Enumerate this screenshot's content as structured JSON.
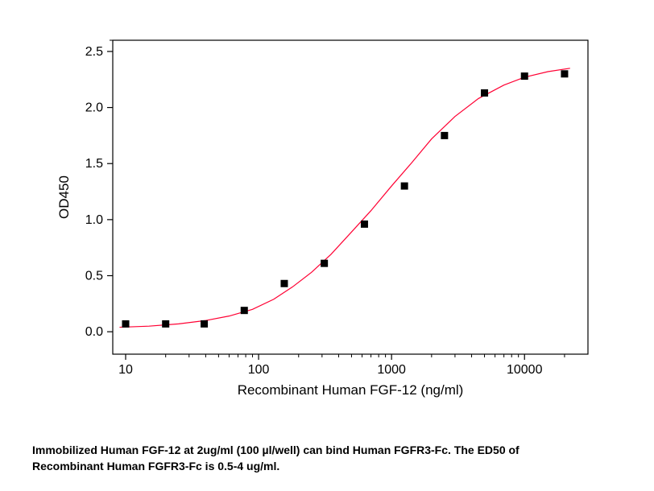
{
  "chart": {
    "type": "scatter+line",
    "xlabel": "Recombinant Human FGF-12 (ng/ml)",
    "ylabel": "OD450",
    "xlabel_fontsize": 17,
    "ylabel_fontsize": 17,
    "tick_fontsize": 16,
    "xscale": "log",
    "yscale": "linear",
    "xlim": [
      8,
      30000
    ],
    "ylim": [
      -0.2,
      2.6
    ],
    "ytick_step": 0.5,
    "xtick_values": [
      10,
      100,
      1000,
      10000
    ],
    "xtick_labels": [
      "10",
      "100",
      "1000",
      "10000"
    ],
    "ytick_values": [
      0.0,
      0.5,
      1.0,
      1.5,
      2.0,
      2.5
    ],
    "ytick_labels": [
      "0.0",
      "0.5",
      "1.0",
      "1.5",
      "2.0",
      "2.5"
    ],
    "x_minor_ticks": [
      20,
      30,
      40,
      50,
      60,
      70,
      80,
      90,
      200,
      300,
      400,
      500,
      600,
      700,
      800,
      900,
      2000,
      3000,
      4000,
      5000,
      6000,
      7000,
      8000,
      9000,
      20000
    ],
    "background_color": "#ffffff",
    "axis_color": "#000000",
    "marker_color": "#000000",
    "marker_size": 9,
    "marker_style": "square",
    "line_color": "#ff0033",
    "line_width": 1.2,
    "font_family": "Arial",
    "data_points": [
      {
        "x": 10,
        "y": 0.07
      },
      {
        "x": 20,
        "y": 0.07
      },
      {
        "x": 39,
        "y": 0.07
      },
      {
        "x": 78,
        "y": 0.19
      },
      {
        "x": 156,
        "y": 0.43
      },
      {
        "x": 312,
        "y": 0.61
      },
      {
        "x": 625,
        "y": 0.96
      },
      {
        "x": 1250,
        "y": 1.3
      },
      {
        "x": 2500,
        "y": 1.75
      },
      {
        "x": 5000,
        "y": 2.13
      },
      {
        "x": 10000,
        "y": 2.28
      },
      {
        "x": 20000,
        "y": 2.3
      }
    ],
    "fit_points": [
      {
        "x": 9,
        "y": 0.04
      },
      {
        "x": 15,
        "y": 0.05
      },
      {
        "x": 25,
        "y": 0.07
      },
      {
        "x": 40,
        "y": 0.1
      },
      {
        "x": 60,
        "y": 0.14
      },
      {
        "x": 90,
        "y": 0.2
      },
      {
        "x": 130,
        "y": 0.29
      },
      {
        "x": 180,
        "y": 0.4
      },
      {
        "x": 250,
        "y": 0.53
      },
      {
        "x": 350,
        "y": 0.69
      },
      {
        "x": 500,
        "y": 0.89
      },
      {
        "x": 700,
        "y": 1.08
      },
      {
        "x": 1000,
        "y": 1.3
      },
      {
        "x": 1400,
        "y": 1.5
      },
      {
        "x": 2000,
        "y": 1.72
      },
      {
        "x": 3000,
        "y": 1.92
      },
      {
        "x": 4500,
        "y": 2.08
      },
      {
        "x": 7000,
        "y": 2.2
      },
      {
        "x": 10000,
        "y": 2.27
      },
      {
        "x": 15000,
        "y": 2.32
      },
      {
        "x": 22000,
        "y": 2.35
      }
    ]
  },
  "caption": {
    "line1": "Immobilized Human FGF-12 at 2ug/ml (100 µl/well) can bind Human FGFR3-Fc. The ED50 of",
    "line2": "Recombinant Human FGFR3-Fc is 0.5-4 ug/ml."
  }
}
